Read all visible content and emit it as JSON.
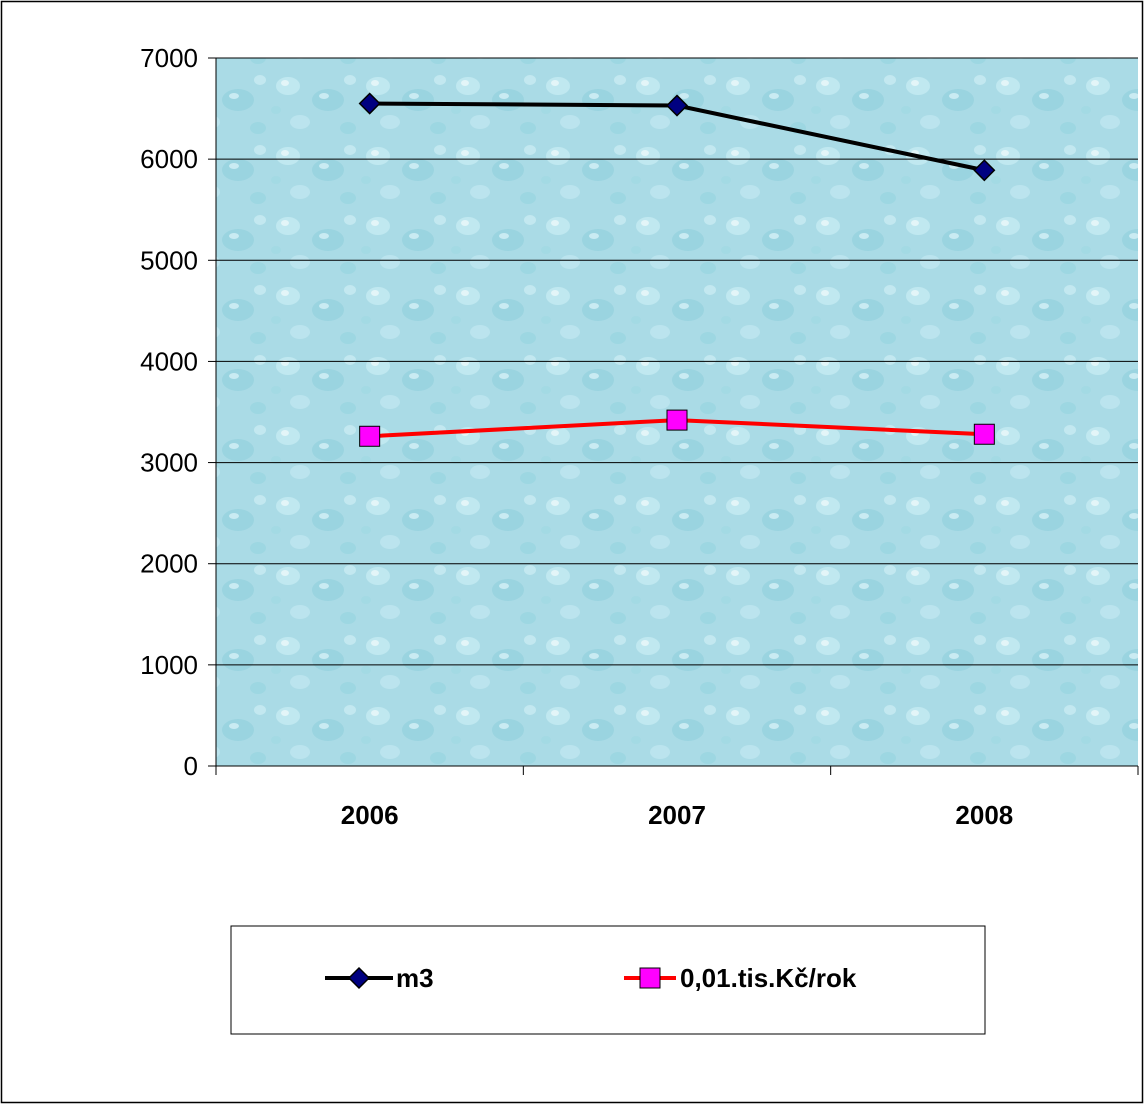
{
  "chart_data": {
    "type": "line",
    "title": "",
    "xlabel": "",
    "ylabel": "",
    "categories": [
      "2006",
      "2007",
      "2008"
    ],
    "ylim": [
      0,
      7000
    ],
    "yticks": [
      "0",
      "1000",
      "2000",
      "3000",
      "4000",
      "5000",
      "6000",
      "7000"
    ],
    "grid": true,
    "legend_position": "bottom",
    "series": [
      {
        "name": "m3",
        "values": [
          6550,
          6530,
          5890
        ],
        "color": "#000000",
        "marker": "diamond",
        "marker_color": "#000080"
      },
      {
        "name": "0,01.tis.Kč/rok",
        "values": [
          3260,
          3420,
          3280
        ],
        "color": "#ff0000",
        "marker": "square",
        "marker_color": "#ff00ff"
      }
    ],
    "plot_background": "#aee0ea"
  }
}
